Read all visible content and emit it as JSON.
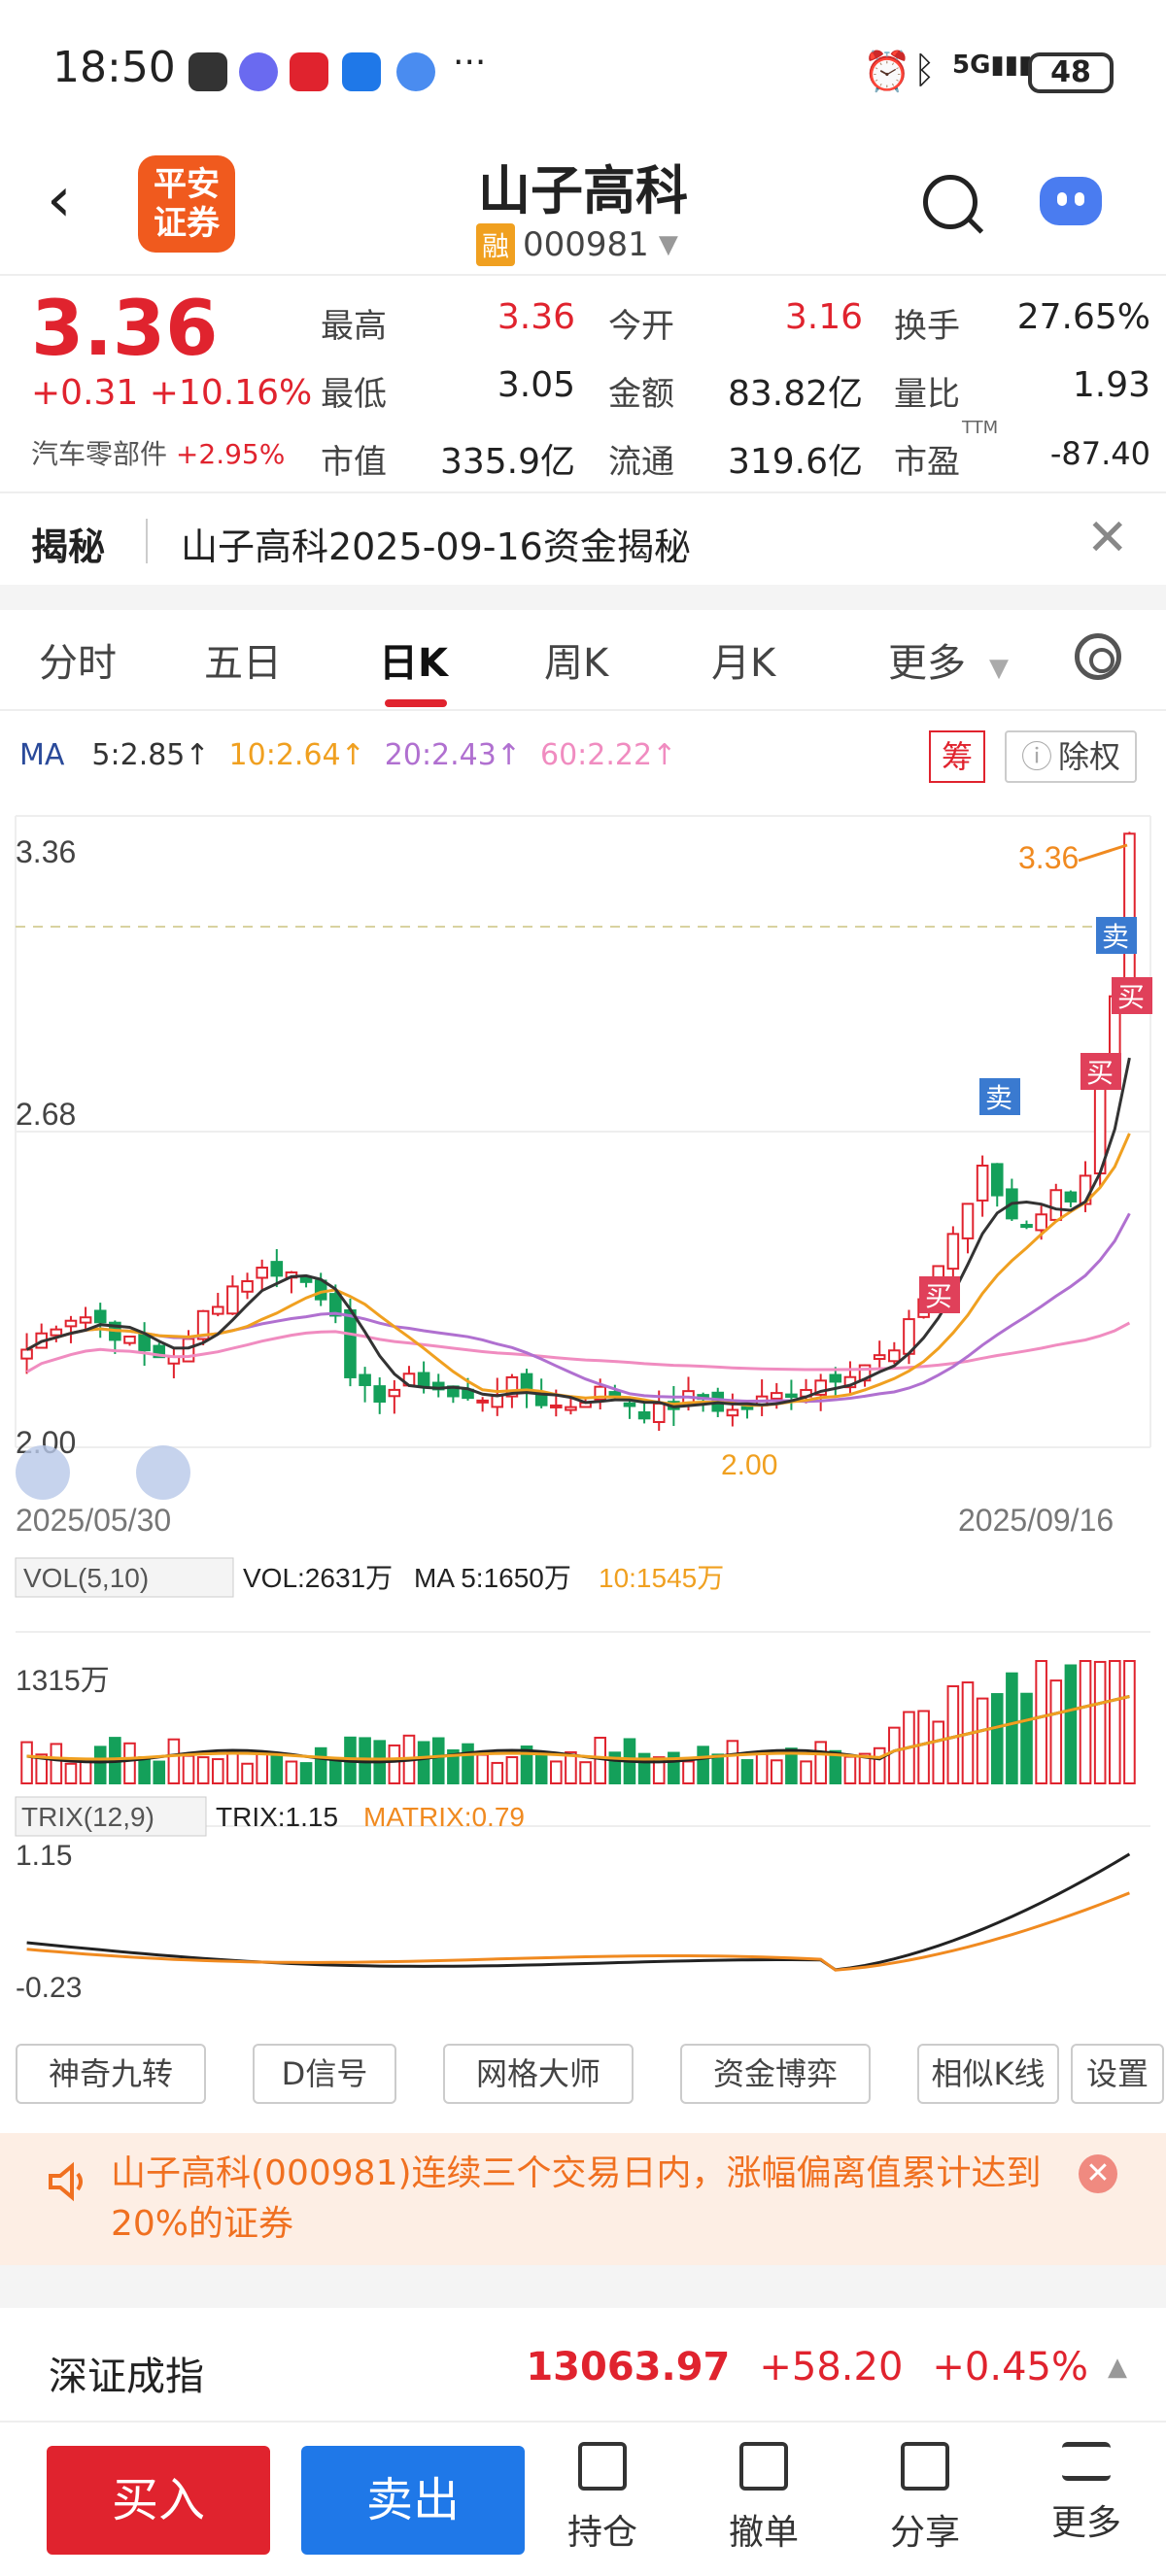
{
  "status_bar": {
    "time": "18:50",
    "battery": "48"
  },
  "header": {
    "logo_text": "平安证券",
    "stock_name": "山子高科",
    "badge": "融",
    "stock_code": "000981"
  },
  "quote": {
    "price": "3.36",
    "change": "+0.31 +10.16%",
    "sector_name": "汽车零部件",
    "sector_change": "+2.95%",
    "fields": [
      {
        "label": "最高",
        "value": "3.36",
        "color": "red"
      },
      {
        "label": "今开",
        "value": "3.16",
        "color": "red"
      },
      {
        "label": "换手",
        "value": "27.65%",
        "color": "dark"
      },
      {
        "label": "最低",
        "value": "3.05",
        "color": "dark"
      },
      {
        "label": "金额",
        "value": "83.82亿",
        "color": "dark"
      },
      {
        "label": "量比",
        "value": "1.93",
        "color": "dark"
      },
      {
        "label": "市值",
        "value": "335.9亿",
        "color": "dark"
      },
      {
        "label": "流通",
        "value": "319.6亿",
        "color": "dark"
      },
      {
        "label": "市盈",
        "value": "-87.40",
        "color": "dark"
      }
    ],
    "ttm": "TTM"
  },
  "reveal": {
    "title": "揭秘",
    "text": "山子高科2025-09-16资金揭秘"
  },
  "tabs": [
    "分时",
    "五日",
    "日K",
    "周K",
    "月K",
    "更多"
  ],
  "ma": {
    "label": "MA",
    "ma5": "5:2.85↑",
    "ma10": "10:2.64↑",
    "ma20": "20:2.43↑",
    "ma60": "60:2.22↑"
  },
  "chart_buttons": {
    "chou": "筹",
    "chuquan": "除权"
  },
  "kline": {
    "y_top": "3.36",
    "y_mid": "2.68",
    "y_bottom": "2.00",
    "price_tag": "3.36",
    "low_tag": "2.00",
    "date_start": "2025/05/30",
    "date_end": "2025/09/16",
    "markers": {
      "buy": "买",
      "sell": "卖"
    }
  },
  "volume": {
    "indicator": "VOL(5,10)",
    "vol": "VOL:2631万",
    "ma5": "MA 5:1650万",
    "ma10": "10:1545万",
    "axis": "1315万"
  },
  "trix": {
    "indicator": "TRIX(12,9)",
    "trix": "TRIX:1.15",
    "matrix": "MATRIX:0.79",
    "axis_top": "1.15",
    "axis_bottom": "-0.23"
  },
  "tools": [
    "神奇九转",
    "D信号",
    "网格大师",
    "资金博弈",
    "相似K线",
    "设置"
  ],
  "alert": {
    "text": "山子高科(000981)连续三个交易日内，涨幅偏离值累计达到20%的证券"
  },
  "index": {
    "name": "深证成指",
    "value": "13063.97",
    "change": "+58.20",
    "pct": "+0.45%"
  },
  "bottom": {
    "buy": "买入",
    "sell": "卖出",
    "nav": [
      "持仓",
      "撤单",
      "分享",
      "更多"
    ]
  },
  "colors": {
    "up": "#e0232e",
    "down": "#14a05a",
    "ma5": "#333333",
    "ma10": "#f0a020",
    "ma20": "#b070d0",
    "ma60": "#f08cc0",
    "accent": "#f05a1e"
  }
}
